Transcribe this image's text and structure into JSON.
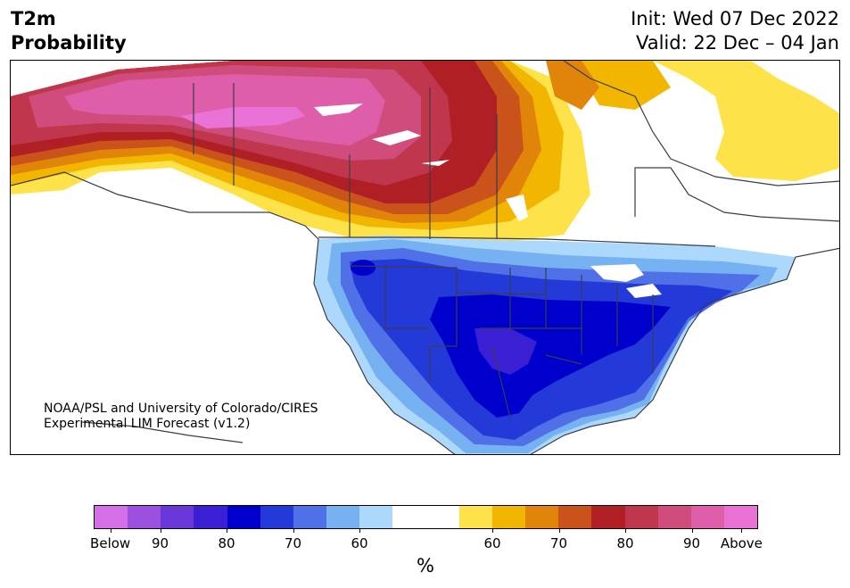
{
  "header": {
    "title_line1": "T2m",
    "title_line2": "Probability",
    "init_line": "Init: Wed 07 Dec 2022",
    "valid_line": "Valid: 22 Dec – 04 Jan"
  },
  "credit": {
    "line1": "NOAA/PSL and University of Colorado/CIRES",
    "line2": "Experimental LIM Forecast (v1.2)"
  },
  "colorbar": {
    "colors": [
      "#d56fe8",
      "#9b50e0",
      "#6a38d8",
      "#3b1fd4",
      "#0000cc",
      "#233ad8",
      "#4f70e6",
      "#76b1f2",
      "#acd9fb",
      "#ffffff",
      "#ffffff",
      "#fde24a",
      "#f2b600",
      "#e0850a",
      "#c9531a",
      "#b01f24",
      "#c0364d",
      "#d04c7c",
      "#de5ea9",
      "#ea72d6"
    ],
    "ticks": [
      {
        "label": "Below"
      },
      {
        "label": "90"
      },
      {
        "label": "80"
      },
      {
        "label": "70"
      },
      {
        "label": "60"
      },
      {
        "label": "60"
      },
      {
        "label": "70"
      },
      {
        "label": "80"
      },
      {
        "label": "90"
      },
      {
        "label": "Above"
      }
    ],
    "unit": "%"
  },
  "map_colors": {
    "border": "#3c3c4a",
    "water": "#ffffff"
  }
}
